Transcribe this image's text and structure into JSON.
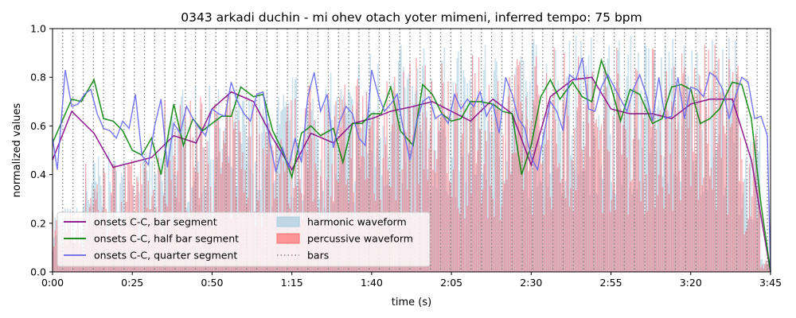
{
  "chart_data": {
    "type": "line",
    "title": "0343 arkadi duchin - mi ohev otach yoter mimeni, inferred tempo: 75 bpm",
    "xlabel": "time (s)",
    "ylabel": "normalized values",
    "xlim": [
      0,
      225
    ],
    "ylim": [
      0,
      1
    ],
    "x_ticks": [
      0,
      25,
      50,
      75,
      100,
      125,
      150,
      175,
      200,
      225
    ],
    "x_tick_labels": [
      "0:00",
      "0:25",
      "0:50",
      "1:15",
      "1:40",
      "2:05",
      "2:30",
      "2:55",
      "3:20",
      "3:45"
    ],
    "y_ticks": [
      0,
      0.2,
      0.4,
      0.6,
      0.8,
      1.0
    ],
    "y_tick_labels": [
      "0.0",
      "0.2",
      "0.4",
      "0.6",
      "0.8",
      "1.0"
    ],
    "bar_interval_s": 3.2,
    "legend_position": "lower-left",
    "legend": [
      {
        "label": "onsets C-C, bar segment",
        "color": "#800080",
        "kind": "line"
      },
      {
        "label": "onsets C-C, half bar segment",
        "color": "#008000",
        "kind": "line"
      },
      {
        "label": "onsets C-C, quarter segment",
        "color": "#6666ee",
        "kind": "line"
      },
      {
        "label": "harmonic waveform",
        "color": "#a8cde0",
        "kind": "patch"
      },
      {
        "label": "percussive waveform",
        "color": "#ff7070",
        "kind": "patch"
      },
      {
        "label": "bars",
        "color": "#808080",
        "kind": "dotted"
      }
    ],
    "series": [
      {
        "name": "onsets C-C, bar segment",
        "color": "#800080",
        "points": [
          [
            0,
            0.46
          ],
          [
            6,
            0.66
          ],
          [
            13,
            0.57
          ],
          [
            19,
            0.43
          ],
          [
            25,
            0.45
          ],
          [
            31,
            0.47
          ],
          [
            38,
            0.56
          ],
          [
            45,
            0.53
          ],
          [
            50,
            0.67
          ],
          [
            56,
            0.74
          ],
          [
            63,
            0.7
          ],
          [
            69,
            0.55
          ],
          [
            75,
            0.42
          ],
          [
            81,
            0.57
          ],
          [
            88,
            0.53
          ],
          [
            94,
            0.61
          ],
          [
            100,
            0.63
          ],
          [
            106,
            0.66
          ],
          [
            113,
            0.68
          ],
          [
            119,
            0.7
          ],
          [
            125,
            0.66
          ],
          [
            131,
            0.62
          ],
          [
            138,
            0.71
          ],
          [
            144,
            0.65
          ],
          [
            150,
            0.44
          ],
          [
            156,
            0.72
          ],
          [
            163,
            0.79
          ],
          [
            169,
            0.8
          ],
          [
            175,
            0.67
          ],
          [
            181,
            0.65
          ],
          [
            188,
            0.65
          ],
          [
            194,
            0.63
          ],
          [
            200,
            0.69
          ],
          [
            206,
            0.71
          ],
          [
            213,
            0.71
          ],
          [
            219,
            0.46
          ],
          [
            225,
            0.0
          ]
        ]
      },
      {
        "name": "onsets C-C, half bar segment",
        "color": "#008000",
        "points": [
          [
            0,
            0.53
          ],
          [
            3,
            0.62
          ],
          [
            6,
            0.71
          ],
          [
            9,
            0.7
          ],
          [
            13,
            0.79
          ],
          [
            16,
            0.63
          ],
          [
            19,
            0.62
          ],
          [
            22,
            0.58
          ],
          [
            25,
            0.5
          ],
          [
            28,
            0.48
          ],
          [
            31,
            0.55
          ],
          [
            34,
            0.4
          ],
          [
            38,
            0.69
          ],
          [
            41,
            0.52
          ],
          [
            44,
            0.63
          ],
          [
            47,
            0.58
          ],
          [
            50,
            0.61
          ],
          [
            53,
            0.64
          ],
          [
            56,
            0.64
          ],
          [
            59,
            0.76
          ],
          [
            63,
            0.72
          ],
          [
            66,
            0.73
          ],
          [
            69,
            0.58
          ],
          [
            72,
            0.5
          ],
          [
            75,
            0.39
          ],
          [
            78,
            0.57
          ],
          [
            81,
            0.6
          ],
          [
            84,
            0.56
          ],
          [
            88,
            0.59
          ],
          [
            91,
            0.45
          ],
          [
            94,
            0.61
          ],
          [
            97,
            0.61
          ],
          [
            100,
            0.65
          ],
          [
            103,
            0.65
          ],
          [
            106,
            0.76
          ],
          [
            109,
            0.58
          ],
          [
            113,
            0.52
          ],
          [
            116,
            0.77
          ],
          [
            119,
            0.73
          ],
          [
            122,
            0.65
          ],
          [
            125,
            0.62
          ],
          [
            128,
            0.63
          ],
          [
            131,
            0.7
          ],
          [
            134,
            0.7
          ],
          [
            138,
            0.69
          ],
          [
            141,
            0.66
          ],
          [
            144,
            0.65
          ],
          [
            147,
            0.4
          ],
          [
            150,
            0.52
          ],
          [
            153,
            0.72
          ],
          [
            156,
            0.79
          ],
          [
            159,
            0.71
          ],
          [
            163,
            0.78
          ],
          [
            166,
            0.72
          ],
          [
            169,
            0.7
          ],
          [
            172,
            0.87
          ],
          [
            175,
            0.76
          ],
          [
            178,
            0.62
          ],
          [
            181,
            0.75
          ],
          [
            184,
            0.73
          ],
          [
            188,
            0.61
          ],
          [
            191,
            0.63
          ],
          [
            194,
            0.76
          ],
          [
            197,
            0.77
          ],
          [
            200,
            0.75
          ],
          [
            203,
            0.61
          ],
          [
            206,
            0.63
          ],
          [
            209,
            0.67
          ],
          [
            213,
            0.78
          ],
          [
            216,
            0.77
          ],
          [
            219,
            0.63
          ],
          [
            222,
            0.28
          ],
          [
            225,
            0.0
          ]
        ]
      },
      {
        "name": "onsets C-C, quarter segment",
        "color": "#6666ee",
        "points": [
          [
            0,
            0.55
          ],
          [
            1.5,
            0.42
          ],
          [
            4,
            0.83
          ],
          [
            6,
            0.68
          ],
          [
            8,
            0.69
          ],
          [
            10,
            0.73
          ],
          [
            12,
            0.75
          ],
          [
            14,
            0.65
          ],
          [
            16,
            0.59
          ],
          [
            18,
            0.58
          ],
          [
            20,
            0.55
          ],
          [
            22,
            0.62
          ],
          [
            24,
            0.59
          ],
          [
            26,
            0.73
          ],
          [
            28,
            0.48
          ],
          [
            30,
            0.44
          ],
          [
            32,
            0.6
          ],
          [
            34,
            0.71
          ],
          [
            36,
            0.43
          ],
          [
            38,
            0.61
          ],
          [
            40,
            0.57
          ],
          [
            42,
            0.68
          ],
          [
            44,
            0.63
          ],
          [
            46,
            0.59
          ],
          [
            48,
            0.56
          ],
          [
            50,
            0.67
          ],
          [
            52,
            0.65
          ],
          [
            54,
            0.64
          ],
          [
            56,
            0.78
          ],
          [
            58,
            0.7
          ],
          [
            60,
            0.65
          ],
          [
            62,
            0.62
          ],
          [
            64,
            0.73
          ],
          [
            66,
            0.74
          ],
          [
            68,
            0.54
          ],
          [
            70,
            0.41
          ],
          [
            72,
            0.51
          ],
          [
            74,
            0.43
          ],
          [
            76,
            0.55
          ],
          [
            78,
            0.45
          ],
          [
            80,
            0.72
          ],
          [
            82,
            0.82
          ],
          [
            84,
            0.66
          ],
          [
            86,
            0.73
          ],
          [
            88,
            0.51
          ],
          [
            90,
            0.62
          ],
          [
            92,
            0.68
          ],
          [
            94,
            0.65
          ],
          [
            96,
            0.55
          ],
          [
            98,
            0.52
          ],
          [
            100,
            0.83
          ],
          [
            102,
            0.73
          ],
          [
            104,
            0.66
          ],
          [
            106,
            0.69
          ],
          [
            108,
            0.73
          ],
          [
            110,
            0.58
          ],
          [
            112,
            0.46
          ],
          [
            114,
            0.61
          ],
          [
            116,
            0.7
          ],
          [
            118,
            0.72
          ],
          [
            120,
            0.63
          ],
          [
            122,
            0.65
          ],
          [
            124,
            0.61
          ],
          [
            126,
            0.73
          ],
          [
            128,
            0.67
          ],
          [
            130,
            0.71
          ],
          [
            132,
            0.68
          ],
          [
            134,
            0.74
          ],
          [
            136,
            0.64
          ],
          [
            138,
            0.69
          ],
          [
            140,
            0.57
          ],
          [
            142,
            0.8
          ],
          [
            144,
            0.73
          ],
          [
            146,
            0.63
          ],
          [
            148,
            0.59
          ],
          [
            150,
            0.47
          ],
          [
            152,
            0.42
          ],
          [
            154,
            0.57
          ],
          [
            156,
            0.7
          ],
          [
            158,
            0.66
          ],
          [
            160,
            0.58
          ],
          [
            162,
            0.81
          ],
          [
            164,
            0.79
          ],
          [
            166,
            0.88
          ],
          [
            168,
            0.67
          ],
          [
            170,
            0.66
          ],
          [
            172,
            0.76
          ],
          [
            174,
            0.81
          ],
          [
            176,
            0.76
          ],
          [
            178,
            0.71
          ],
          [
            180,
            0.66
          ],
          [
            182,
            0.75
          ],
          [
            184,
            0.81
          ],
          [
            186,
            0.73
          ],
          [
            188,
            0.62
          ],
          [
            190,
            0.8
          ],
          [
            192,
            0.63
          ],
          [
            194,
            0.64
          ],
          [
            196,
            0.8
          ],
          [
            198,
            0.63
          ],
          [
            200,
            0.76
          ],
          [
            202,
            0.75
          ],
          [
            204,
            0.72
          ],
          [
            206,
            0.82
          ],
          [
            208,
            0.8
          ],
          [
            210,
            0.75
          ],
          [
            212,
            0.63
          ],
          [
            214,
            0.72
          ],
          [
            216,
            0.8
          ],
          [
            218,
            0.78
          ],
          [
            220,
            0.63
          ],
          [
            222,
            0.64
          ],
          [
            224,
            0.56
          ],
          [
            225,
            0.0
          ]
        ]
      }
    ]
  }
}
